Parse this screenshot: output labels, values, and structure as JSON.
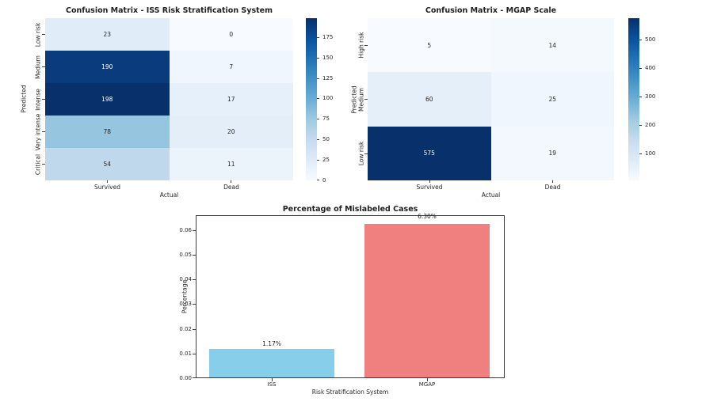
{
  "figure": {
    "background": "#ffffff"
  },
  "chart_data": [
    {
      "type": "heatmap",
      "title": "Confusion Matrix - ISS Risk Stratification System",
      "xlabel": "Actual",
      "ylabel": "Predicted",
      "x_categories": [
        "Survived",
        "Dead"
      ],
      "y_categories": [
        "Low risk",
        "Medium",
        "Intense",
        "Very intense",
        "Critical"
      ],
      "values": [
        [
          23,
          0
        ],
        [
          190,
          7
        ],
        [
          198,
          17
        ],
        [
          78,
          20
        ],
        [
          54,
          11
        ]
      ],
      "vmin": 0,
      "vmax": 198,
      "colormap": "Blues",
      "colorbar_ticks": [
        "175",
        "150",
        "125",
        "100",
        "75",
        "50",
        "25",
        "0"
      ],
      "cells": [
        {
          "v": "23",
          "bg": "#e0ecf8",
          "fg": "#262626"
        },
        {
          "v": "0",
          "bg": "#f7fbff",
          "fg": "#262626"
        },
        {
          "v": "190",
          "bg": "#0a3b7c",
          "fg": "#ffffff"
        },
        {
          "v": "7",
          "bg": "#f0f6fd",
          "fg": "#262626"
        },
        {
          "v": "198",
          "bg": "#08306b",
          "fg": "#ffffff"
        },
        {
          "v": "17",
          "bg": "#e6f0fa",
          "fg": "#262626"
        },
        {
          "v": "78",
          "bg": "#96c6df",
          "fg": "#262626"
        },
        {
          "v": "20",
          "bg": "#e3eef9",
          "fg": "#262626"
        },
        {
          "v": "54",
          "bg": "#bfd8ec",
          "fg": "#262626"
        },
        {
          "v": "11",
          "bg": "#ecf4fb",
          "fg": "#262626"
        }
      ]
    },
    {
      "type": "heatmap",
      "title": "Confusion Matrix - MGAP Scale",
      "xlabel": "Actual",
      "ylabel": "Predicted",
      "x_categories": [
        "Survived",
        "Dead"
      ],
      "y_categories": [
        "High risk",
        "Medium",
        "Low risk"
      ],
      "values": [
        [
          5,
          14
        ],
        [
          60,
          25
        ],
        [
          575,
          19
        ]
      ],
      "vmin": 5,
      "vmax": 575,
      "colormap": "Blues",
      "colorbar_ticks": [
        "500",
        "400",
        "300",
        "200",
        "100"
      ],
      "cells": [
        {
          "v": "5",
          "bg": "#f7fbff",
          "fg": "#262626"
        },
        {
          "v": "14",
          "bg": "#f4f9fe",
          "fg": "#262626"
        },
        {
          "v": "60",
          "bg": "#e4eff9",
          "fg": "#262626"
        },
        {
          "v": "25",
          "bg": "#f0f6fd",
          "fg": "#262626"
        },
        {
          "v": "575",
          "bg": "#08306b",
          "fg": "#ffffff"
        },
        {
          "v": "19",
          "bg": "#f2f8fe",
          "fg": "#262626"
        }
      ]
    },
    {
      "type": "bar",
      "title": "Percentage of Mislabeled Cases",
      "xlabel": "Risk Stratification System",
      "ylabel": "Percentage",
      "categories": [
        "ISS",
        "MGAP"
      ],
      "values": [
        0.0117,
        0.063
      ],
      "bar_labels": [
        "1.17%",
        "6.30%"
      ],
      "bar_colors": [
        "#87ceeb",
        "#f08080"
      ],
      "y_ticks": [
        "0.06",
        "0.05",
        "0.04",
        "0.03",
        "0.02",
        "0.01",
        "0.00"
      ],
      "ylim": [
        0,
        0.0661
      ],
      "grid": false,
      "legend": false
    }
  ]
}
